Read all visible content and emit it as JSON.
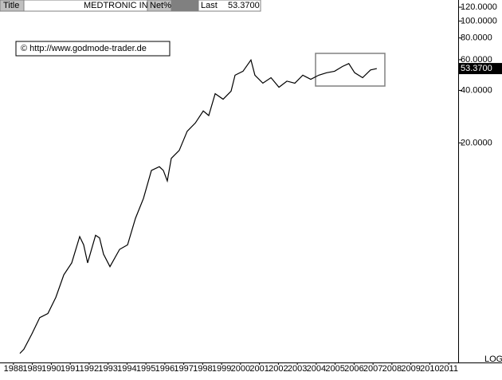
{
  "chart_data": {
    "type": "line",
    "header": {
      "title_label": "Title",
      "name": "MEDTRONIC INC",
      "net_label": "Net%",
      "last_label": "Last"
    },
    "last": {
      "value": 53.37,
      "label": "53.3700"
    },
    "annotation": "© http://www.godmode-trader.de",
    "scale_label": "LOG",
    "log_scale": true,
    "color": "#000000",
    "x": [
      1988.34,
      1988.55,
      1988.97,
      1989.39,
      1989.82,
      1990.24,
      1990.66,
      1991.08,
      1991.5,
      1991.71,
      1991.92,
      1992.34,
      1992.55,
      1992.76,
      1993.1,
      1993.61,
      1994.03,
      1994.45,
      1994.87,
      1995.29,
      1995.71,
      1995.92,
      1996.13,
      1996.34,
      1996.76,
      1997.18,
      1997.61,
      1998.03,
      1998.32,
      1998.66,
      1999.08,
      1999.5,
      1999.71,
      2000.13,
      2000.55,
      2000.76,
      2001.18,
      2001.61,
      2002.03,
      2002.45,
      2002.87,
      2003.29,
      2003.71,
      2004.13,
      2004.55,
      2004.97,
      2005.39,
      2005.72,
      2006.03,
      2006.45,
      2006.87,
      2007.2
    ],
    "values": [
      1.24,
      1.31,
      1.6,
      1.99,
      2.1,
      2.6,
      3.5,
      4.1,
      5.8,
      5.2,
      4.1,
      5.9,
      5.7,
      4.6,
      3.9,
      4.9,
      5.2,
      7.4,
      9.6,
      13.9,
      14.6,
      13.9,
      12.1,
      16.3,
      18.1,
      23.3,
      26.0,
      30.5,
      28.7,
      38.3,
      35.6,
      39.6,
      48.9,
      51.5,
      59.8,
      48.9,
      44.0,
      47.3,
      41.7,
      45.2,
      44.0,
      48.9,
      46.3,
      48.9,
      50.5,
      51.5,
      54.9,
      57.0,
      50.5,
      47.3,
      52.4,
      53.37
    ],
    "xlim": [
      1987.5,
      2011.5
    ],
    "xticks": [
      1988,
      1989,
      1990,
      1991,
      1992,
      1993,
      1994,
      1995,
      1996,
      1997,
      1998,
      1999,
      2000,
      2001,
      2002,
      2003,
      2004,
      2005,
      2006,
      2007,
      2008,
      2009,
      2010,
      2011
    ],
    "ylim": [
      1.1,
      132
    ],
    "yticks": [
      {
        "value": 120,
        "label": "120.0000"
      },
      {
        "value": 100,
        "label": "100.0000"
      },
      {
        "value": 80,
        "label": "80.0000"
      },
      {
        "value": 60,
        "label": "60.0000"
      },
      {
        "value": 40,
        "label": "40.0000"
      },
      {
        "value": 20,
        "label": "20.0000"
      }
    ]
  }
}
